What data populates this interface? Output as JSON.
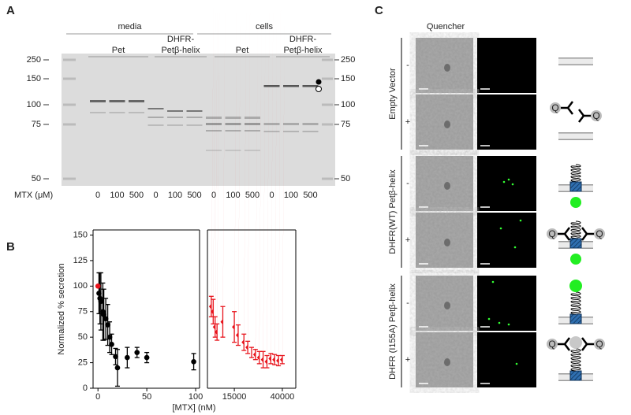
{
  "panel_a": {
    "label": "A",
    "groups": [
      "media",
      "cells"
    ],
    "subgroups": [
      {
        "lines": [
          "Pet"
        ]
      },
      {
        "lines": [
          "DHFR-",
          "Petβ-helix"
        ]
      },
      {
        "lines": [
          "Pet"
        ]
      },
      {
        "lines": [
          "DHFR-",
          "Petβ-helix"
        ]
      }
    ],
    "ladder": [
      250,
      150,
      100,
      75,
      50
    ],
    "mtx_label": "MTX (μM)",
    "lanes": [
      0,
      100,
      500,
      0,
      100,
      500,
      0,
      100,
      500,
      0,
      100,
      500
    ]
  },
  "chart_data": {
    "type": "scatter",
    "label": "B",
    "ylabel": "Normalized % secretion",
    "xlabel": "[MTX] (nM)",
    "ylim": [
      0,
      155
    ],
    "yticks": [
      0,
      25,
      50,
      75,
      100,
      125,
      150
    ],
    "panels": [
      {
        "xlim": [
          -5,
          104
        ],
        "xticks": [
          0,
          50,
          100
        ],
        "series": [
          {
            "color": "#000000",
            "x": [
              1,
              2,
              3,
              5,
              6,
              8,
              10,
              12,
              14,
              18,
              20,
              30,
              40,
              50,
              98
            ],
            "values": [
              93,
              88,
              85,
              75,
              72,
              68,
              62,
              50,
              43,
              31,
              20,
              30,
              35,
              30,
              26
            ],
            "errors": [
              20,
              25,
              28,
              28,
              25,
              20,
              20,
              15,
              10,
              8,
              18,
              10,
              5,
              5,
              8
            ]
          },
          {
            "color": "#e8141c",
            "x": [
              0
            ],
            "values": [
              100
            ],
            "errors": [
              0
            ]
          }
        ]
      },
      {
        "xlim": [
          1000,
          47000
        ],
        "xticks": [
          15000,
          40000
        ],
        "series": [
          {
            "color": "#e8141c",
            "x": [
              3000,
              4000,
              5000,
              6000,
              9000,
              15000,
              17000,
              20000,
              22000,
              24000,
              26000,
              28000,
              30000,
              32000,
              34000,
              36000,
              38000,
              40000
            ],
            "values": [
              80,
              75,
              60,
              55,
              65,
              60,
              52,
              45,
              40,
              35,
              33,
              30,
              28,
              26,
              29,
              28,
              27,
              28
            ],
            "errors": [
              10,
              12,
              10,
              8,
              15,
              15,
              10,
              8,
              6,
              5,
              5,
              6,
              8,
              6,
              5,
              5,
              5,
              4
            ]
          }
        ]
      }
    ]
  },
  "panel_c": {
    "label": "C",
    "column_header": "Quencher",
    "quencher_symbol": "Q",
    "groups": [
      {
        "label": "Empty Vector",
        "rows": [
          "-",
          "+"
        ]
      },
      {
        "label": "DHFR(WT) Petβ-helix",
        "rows": [
          "-",
          "+"
        ]
      },
      {
        "label": "DHFR (I155A) Petβ-helix",
        "rows": [
          "-",
          "+"
        ]
      }
    ]
  }
}
